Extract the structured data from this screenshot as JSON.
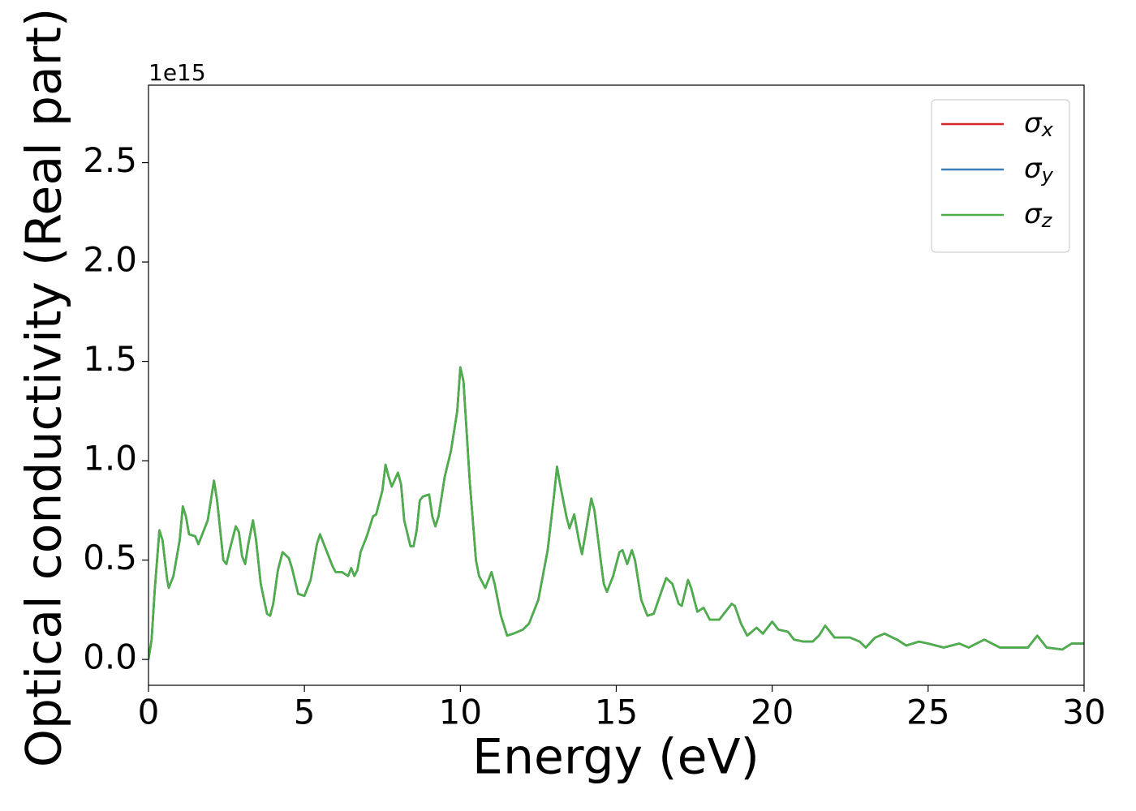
{
  "chart_data": {
    "type": "line",
    "xlabel": "Energy (eV)",
    "ylabel": "Optical conductivity (Real part)",
    "y_offset_label": "1e15",
    "xlim": [
      0,
      30
    ],
    "xticks": [
      0,
      5,
      10,
      15,
      20,
      25,
      30
    ],
    "ylim": [
      -0.13,
      2.89
    ],
    "yticks": [
      {
        "value": 0,
        "label": "0.0"
      },
      0.5,
      {
        "value": 1,
        "label": "1.0"
      },
      1.5,
      {
        "value": 2,
        "label": "2.0"
      },
      2.5
    ],
    "legend": "upper right",
    "grid": false,
    "x": [
      0,
      0.1,
      0.2,
      0.35,
      0.45,
      0.6,
      0.65,
      0.8,
      1.0,
      1.1,
      1.2,
      1.3,
      1.5,
      1.6,
      1.75,
      1.9,
      2.1,
      2.2,
      2.4,
      2.5,
      2.6,
      2.8,
      2.9,
      3.0,
      3.1,
      3.2,
      3.35,
      3.45,
      3.6,
      3.8,
      3.9,
      4.0,
      4.15,
      4.3,
      4.5,
      4.6,
      4.8,
      5.0,
      5.2,
      5.4,
      5.5,
      5.7,
      5.9,
      6.0,
      6.2,
      6.4,
      6.5,
      6.6,
      6.7,
      6.8,
      7.0,
      7.2,
      7.3,
      7.5,
      7.6,
      7.7,
      7.8,
      8.0,
      8.1,
      8.2,
      8.4,
      8.5,
      8.6,
      8.7,
      8.8,
      9.0,
      9.1,
      9.2,
      9.3,
      9.5,
      9.7,
      9.9,
      10.0,
      10.1,
      10.3,
      10.5,
      10.6,
      10.8,
      11.0,
      11.1,
      11.3,
      11.5,
      11.7,
      12.0,
      12.2,
      12.5,
      12.8,
      13.0,
      13.1,
      13.2,
      13.4,
      13.5,
      13.65,
      13.8,
      13.9,
      14.0,
      14.2,
      14.3,
      14.5,
      14.6,
      14.7,
      14.9,
      15.1,
      15.2,
      15.35,
      15.5,
      15.6,
      15.8,
      16.0,
      16.2,
      16.4,
      16.6,
      16.8,
      17.0,
      17.1,
      17.3,
      17.4,
      17.6,
      17.8,
      18.0,
      18.3,
      18.5,
      18.7,
      18.8,
      19.0,
      19.2,
      19.5,
      19.7,
      20.0,
      20.2,
      20.5,
      20.7,
      21.0,
      21.3,
      21.5,
      21.7,
      22.0,
      22.5,
      22.8,
      23.0,
      23.3,
      23.6,
      24.0,
      24.3,
      24.7,
      25.0,
      25.5,
      26.0,
      26.3,
      26.8,
      27.3,
      27.8,
      28.2,
      28.5,
      28.8,
      29.3,
      29.6,
      30.0
    ],
    "series": [
      {
        "name": "σx",
        "color": "#d62728",
        "values": [
          0,
          0.1,
          0.35,
          0.65,
          0.6,
          0.4,
          0.36,
          0.42,
          0.6,
          0.77,
          0.72,
          0.63,
          0.62,
          0.58,
          0.64,
          0.7,
          0.9,
          0.8,
          0.5,
          0.48,
          0.55,
          0.67,
          0.64,
          0.52,
          0.48,
          0.58,
          0.7,
          0.6,
          0.38,
          0.23,
          0.22,
          0.28,
          0.45,
          0.54,
          0.51,
          0.46,
          0.33,
          0.32,
          0.4,
          0.58,
          0.63,
          0.55,
          0.47,
          0.44,
          0.44,
          0.42,
          0.46,
          0.42,
          0.45,
          0.54,
          0.62,
          0.72,
          0.73,
          0.85,
          0.98,
          0.92,
          0.87,
          0.94,
          0.88,
          0.7,
          0.57,
          0.57,
          0.65,
          0.8,
          0.82,
          0.83,
          0.72,
          0.67,
          0.72,
          0.92,
          1.05,
          1.25,
          1.47,
          1.4,
          0.9,
          0.5,
          0.42,
          0.36,
          0.44,
          0.38,
          0.22,
          0.12,
          0.13,
          0.15,
          0.18,
          0.3,
          0.55,
          0.82,
          0.97,
          0.88,
          0.72,
          0.66,
          0.73,
          0.6,
          0.53,
          0.62,
          0.81,
          0.75,
          0.5,
          0.38,
          0.34,
          0.42,
          0.54,
          0.55,
          0.48,
          0.55,
          0.5,
          0.3,
          0.22,
          0.23,
          0.32,
          0.41,
          0.38,
          0.28,
          0.27,
          0.4,
          0.36,
          0.24,
          0.26,
          0.2,
          0.2,
          0.24,
          0.28,
          0.27,
          0.18,
          0.12,
          0.16,
          0.13,
          0.19,
          0.15,
          0.14,
          0.1,
          0.09,
          0.09,
          0.12,
          0.17,
          0.11,
          0.11,
          0.09,
          0.06,
          0.11,
          0.13,
          0.1,
          0.07,
          0.09,
          0.08,
          0.06,
          0.08,
          0.06,
          0.1,
          0.06,
          0.06,
          0.06,
          0.12,
          0.06,
          0.05,
          0.08,
          0.08
        ]
      },
      {
        "name": "σy",
        "color": "#3a7fb8",
        "values": [
          0,
          0.1,
          0.35,
          0.65,
          0.6,
          0.4,
          0.36,
          0.42,
          0.6,
          0.77,
          0.72,
          0.63,
          0.62,
          0.58,
          0.64,
          0.7,
          0.9,
          0.8,
          0.5,
          0.48,
          0.55,
          0.67,
          0.64,
          0.52,
          0.48,
          0.58,
          0.7,
          0.6,
          0.38,
          0.23,
          0.22,
          0.28,
          0.45,
          0.54,
          0.51,
          0.46,
          0.33,
          0.32,
          0.4,
          0.58,
          0.63,
          0.55,
          0.47,
          0.44,
          0.44,
          0.42,
          0.46,
          0.42,
          0.45,
          0.54,
          0.62,
          0.72,
          0.73,
          0.85,
          0.98,
          0.92,
          0.87,
          0.94,
          0.88,
          0.7,
          0.57,
          0.57,
          0.65,
          0.8,
          0.82,
          0.83,
          0.72,
          0.67,
          0.72,
          0.92,
          1.05,
          1.25,
          1.47,
          1.4,
          0.9,
          0.5,
          0.42,
          0.36,
          0.44,
          0.38,
          0.22,
          0.12,
          0.13,
          0.15,
          0.18,
          0.3,
          0.55,
          0.82,
          0.97,
          0.88,
          0.72,
          0.66,
          0.73,
          0.6,
          0.53,
          0.62,
          0.81,
          0.75,
          0.5,
          0.38,
          0.34,
          0.42,
          0.54,
          0.55,
          0.48,
          0.55,
          0.5,
          0.3,
          0.22,
          0.23,
          0.32,
          0.41,
          0.38,
          0.28,
          0.27,
          0.4,
          0.36,
          0.24,
          0.26,
          0.2,
          0.2,
          0.24,
          0.28,
          0.27,
          0.18,
          0.12,
          0.16,
          0.13,
          0.19,
          0.15,
          0.14,
          0.1,
          0.09,
          0.09,
          0.12,
          0.17,
          0.11,
          0.11,
          0.09,
          0.06,
          0.11,
          0.13,
          0.1,
          0.07,
          0.09,
          0.08,
          0.06,
          0.08,
          0.06,
          0.1,
          0.06,
          0.06,
          0.06,
          0.12,
          0.06,
          0.05,
          0.08,
          0.08
        ]
      },
      {
        "name": "σz",
        "color": "#4daf4a",
        "values": [
          0,
          0.1,
          0.35,
          0.65,
          0.6,
          0.4,
          0.36,
          0.42,
          0.6,
          0.77,
          0.72,
          0.63,
          0.62,
          0.58,
          0.64,
          0.7,
          0.9,
          0.8,
          0.5,
          0.48,
          0.55,
          0.67,
          0.64,
          0.52,
          0.48,
          0.58,
          0.7,
          0.6,
          0.38,
          0.23,
          0.22,
          0.28,
          0.45,
          0.54,
          0.51,
          0.46,
          0.33,
          0.32,
          0.4,
          0.58,
          0.63,
          0.55,
          0.47,
          0.44,
          0.44,
          0.42,
          0.46,
          0.42,
          0.45,
          0.54,
          0.62,
          0.72,
          0.73,
          0.85,
          0.98,
          0.92,
          0.87,
          0.94,
          0.88,
          0.7,
          0.57,
          0.57,
          0.65,
          0.8,
          0.82,
          0.83,
          0.72,
          0.67,
          0.72,
          0.92,
          1.05,
          1.25,
          1.47,
          1.4,
          0.9,
          0.5,
          0.42,
          0.36,
          0.44,
          0.38,
          0.22,
          0.12,
          0.13,
          0.15,
          0.18,
          0.3,
          0.55,
          0.82,
          0.97,
          0.88,
          0.72,
          0.66,
          0.73,
          0.6,
          0.53,
          0.62,
          0.81,
          0.75,
          0.5,
          0.38,
          0.34,
          0.42,
          0.54,
          0.55,
          0.48,
          0.55,
          0.5,
          0.3,
          0.22,
          0.23,
          0.32,
          0.41,
          0.38,
          0.28,
          0.27,
          0.4,
          0.36,
          0.24,
          0.26,
          0.2,
          0.2,
          0.24,
          0.28,
          0.27,
          0.18,
          0.12,
          0.16,
          0.13,
          0.19,
          0.15,
          0.14,
          0.1,
          0.09,
          0.09,
          0.12,
          0.17,
          0.11,
          0.11,
          0.09,
          0.06,
          0.11,
          0.13,
          0.1,
          0.07,
          0.09,
          0.08,
          0.06,
          0.08,
          0.06,
          0.1,
          0.06,
          0.06,
          0.06,
          0.12,
          0.06,
          0.05,
          0.08,
          0.08
        ]
      }
    ]
  }
}
